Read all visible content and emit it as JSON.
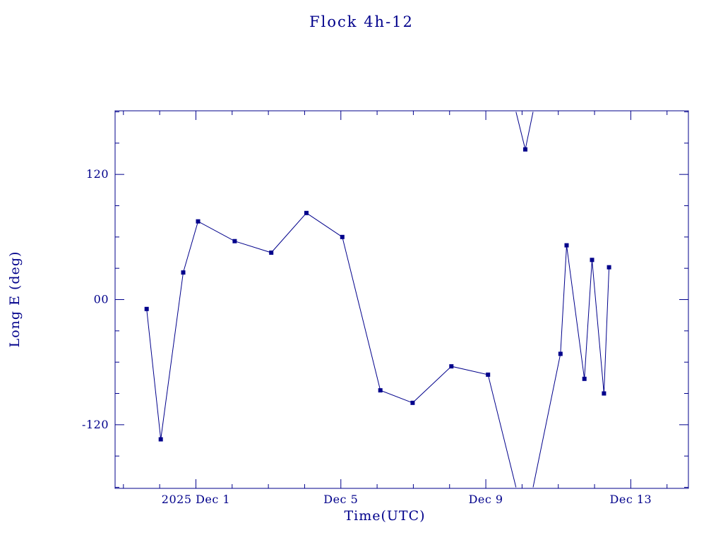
{
  "page": {
    "background_color": "#ffffff",
    "accent_color": "#00008b"
  },
  "chart_data": {
    "type": "line",
    "title": "Flock 4h-12",
    "xlabel": "Time(UTC)",
    "ylabel": "Long E (deg)",
    "series_color": "#00008b",
    "marker_style": "filled-square",
    "legend": "none",
    "grid": "off",
    "x_axis": {
      "unit": "day of December 2025, UTC (Dec 1 00:00 = 1.0)",
      "min": -1.23,
      "max": 14.59,
      "major_ticks": [
        1,
        5,
        9,
        13
      ],
      "major_tick_labels": [
        "2025 Dec 1",
        "Dec 5",
        "Dec 9",
        "Dec 13"
      ],
      "minor_tick_step": 1
    },
    "y_axis": {
      "unit": "degrees longitude East",
      "min": -181,
      "max": 181,
      "major_ticks": [
        -120,
        0,
        120
      ],
      "major_tick_labels": [
        "-120",
        "00",
        "120"
      ],
      "minor_tick_step": 30,
      "wrap_at": 180
    },
    "points": {
      "x": [
        -0.36,
        0.03,
        0.65,
        1.06,
        2.07,
        3.08,
        4.05,
        5.04,
        6.09,
        6.98,
        8.05,
        9.06,
        10.09,
        11.06,
        11.23,
        11.72,
        11.93,
        12.26,
        12.4
      ],
      "y": [
        -9,
        -134,
        26,
        75,
        56,
        45,
        83,
        60,
        -87,
        -99,
        -64,
        -72,
        144,
        -52,
        52,
        -76,
        38,
        -90,
        31
      ]
    }
  }
}
